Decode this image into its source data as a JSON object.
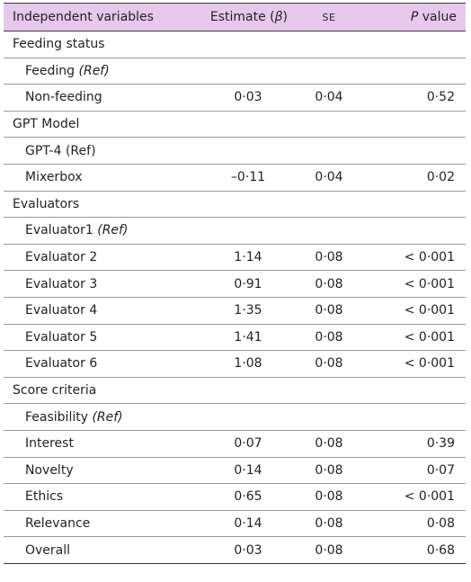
{
  "header": {
    "col1": "Independent variables",
    "col2_prefix": "Estimate (",
    "col2_symbol": "β",
    "col2_suffix": ")",
    "col3": "SE",
    "col4_italic": "P",
    "col4_rest": " value"
  },
  "rows": [
    {
      "label": "Feeding status",
      "ref": "",
      "estimate": "",
      "se": "",
      "p": ""
    },
    {
      "label": "Feeding ",
      "ref": "(Ref)",
      "estimate": "",
      "se": "",
      "p": ""
    },
    {
      "label": "Non-feeding",
      "ref": "",
      "estimate": "0·03",
      "se": "0·04",
      "p": "0·52"
    },
    {
      "label": "GPT Model",
      "ref": "",
      "estimate": "",
      "se": "",
      "p": ""
    },
    {
      "label": "GPT-4 (Ref)",
      "ref": "",
      "estimate": "",
      "se": "",
      "p": ""
    },
    {
      "label": "Mixerbox",
      "ref": "",
      "estimate": "–0·11",
      "se": "0·04",
      "p": "0·02"
    },
    {
      "label": "Evaluators",
      "ref": "",
      "estimate": "",
      "se": "",
      "p": ""
    },
    {
      "label": "Evaluator1 ",
      "ref": "(Ref)",
      "estimate": "",
      "se": "",
      "p": ""
    },
    {
      "label": "Evaluator 2",
      "ref": "",
      "estimate": "1·14",
      "se": "0·08",
      "p": "< 0·001"
    },
    {
      "label": "Evaluator 3",
      "ref": "",
      "estimate": "0·91",
      "se": "0·08",
      "p": "< 0·001"
    },
    {
      "label": "Evaluator 4",
      "ref": "",
      "estimate": "1·35",
      "se": "0·08",
      "p": "< 0·001"
    },
    {
      "label": "Evaluator 5",
      "ref": "",
      "estimate": "1·41",
      "se": "0·08",
      "p": "< 0·001"
    },
    {
      "label": "Evaluator 6",
      "ref": "",
      "estimate": "1·08",
      "se": "0·08",
      "p": "< 0·001"
    },
    {
      "label": "Score criteria",
      "ref": "",
      "estimate": "",
      "se": "",
      "p": ""
    },
    {
      "label": "Feasibility ",
      "ref": "(Ref)",
      "estimate": "",
      "se": "",
      "p": ""
    },
    {
      "label": "Interest",
      "ref": "",
      "estimate": "0·07",
      "se": "0·08",
      "p": "0·39"
    },
    {
      "label": "Novelty",
      "ref": "",
      "estimate": "0·14",
      "se": "0·08",
      "p": "0·07"
    },
    {
      "label": "Ethics",
      "ref": "",
      "estimate": "0·65",
      "se": "0·08",
      "p": "< 0·001"
    },
    {
      "label": "Relevance",
      "ref": "",
      "estimate": "0·14",
      "se": "0·08",
      "p": "0·08"
    },
    {
      "label": "Overall",
      "ref": "",
      "estimate": "0·03",
      "se": "0·08",
      "p": "0·68"
    }
  ]
}
